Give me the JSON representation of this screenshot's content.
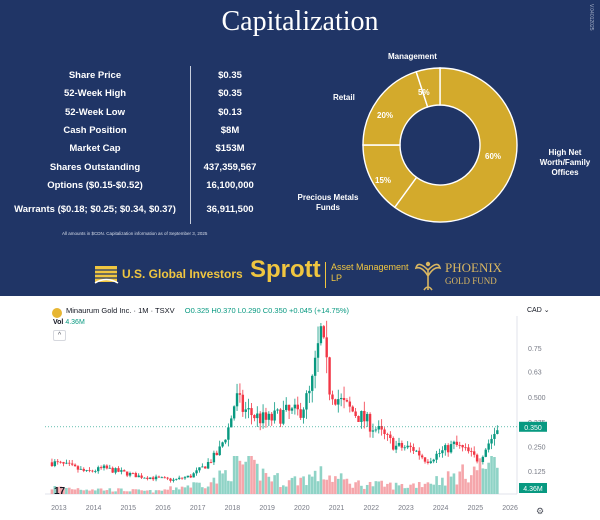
{
  "slide": {
    "title": "Capitalization",
    "side_text": "V.04012025",
    "rows": [
      {
        "label": "Share Price",
        "value": "$0.35"
      },
      {
        "label": "52-Week High",
        "value": "$0.35"
      },
      {
        "label": "52-Week Low",
        "value": "$0.13"
      },
      {
        "label": "Cash Position",
        "value": "$8M"
      },
      {
        "label": "Market Cap",
        "value": "$153M"
      },
      {
        "label": "Shares Outstanding",
        "value": "437,359,567"
      },
      {
        "label": "Options ($0.15-$0.52)",
        "value": "16,100,000"
      },
      {
        "label": "Warrants ($0.18; $0.25; $0.34, $0.37)",
        "value": "36,911,500"
      }
    ],
    "footnote": "All amounts in $CDN.  Capitalization information as of September 3, 2025",
    "logos": {
      "usgi": "U.S. Global Investors",
      "sprott": "Sprott",
      "sprott_sub": "Asset Management LP",
      "phoenix": "PHOENIX",
      "phoenix_sub": "GOLD FUND"
    },
    "colors": {
      "background": "#203566",
      "donut": "#d3aa2c",
      "gold_text": "#f0c640"
    }
  },
  "chart_data": [
    {
      "type": "pie",
      "donut": true,
      "slices": [
        {
          "label": "High Net Worth/Family Offices",
          "value": 60,
          "text": "60%"
        },
        {
          "label": "Precious Metals Funds",
          "value": 15,
          "text": "15%"
        },
        {
          "label": "Retail",
          "value": 20,
          "text": "20%"
        },
        {
          "label": "Management",
          "value": 5,
          "text": "5%"
        }
      ]
    },
    {
      "type": "candlestick",
      "title": "Minaurum Gold Inc. · 1M · TSXV",
      "ohlc_text": "O0.325 H0.370 L0.290 C0.350 +0.045 (+14.75%)",
      "volume_label": "Vol",
      "volume_value": "4.36M",
      "currency": "CAD",
      "last_price": "0.350",
      "x_ticks": [
        "2013",
        "2014",
        "2015",
        "2016",
        "2017",
        "2018",
        "2019",
        "2020",
        "2021",
        "2022",
        "2023",
        "2024",
        "2025",
        "2026"
      ],
      "y_ticks": [
        "0.75",
        "0.63",
        "0.500",
        "0.375",
        "0.250",
        "0.125"
      ],
      "ylim": [
        0.05,
        0.82
      ],
      "anchors": [
        [
          2012.8,
          0.17
        ],
        [
          2013.3,
          0.15
        ],
        [
          2013.8,
          0.12
        ],
        [
          2014.3,
          0.14
        ],
        [
          2014.8,
          0.12
        ],
        [
          2015.3,
          0.1
        ],
        [
          2015.8,
          0.09
        ],
        [
          2016.3,
          0.08
        ],
        [
          2016.8,
          0.1
        ],
        [
          2017.2,
          0.15
        ],
        [
          2017.6,
          0.22
        ],
        [
          2017.9,
          0.35
        ],
        [
          2018.1,
          0.5
        ],
        [
          2018.3,
          0.44
        ],
        [
          2018.7,
          0.4
        ],
        [
          2019.0,
          0.38
        ],
        [
          2019.5,
          0.42
        ],
        [
          2019.9,
          0.42
        ],
        [
          2020.25,
          0.52
        ],
        [
          2020.55,
          0.82
        ],
        [
          2020.8,
          0.55
        ],
        [
          2021.2,
          0.46
        ],
        [
          2021.7,
          0.4
        ],
        [
          2022.2,
          0.33
        ],
        [
          2022.7,
          0.25
        ],
        [
          2023.2,
          0.24
        ],
        [
          2023.6,
          0.18
        ],
        [
          2024.0,
          0.22
        ],
        [
          2024.4,
          0.26
        ],
        [
          2024.8,
          0.22
        ],
        [
          2025.1,
          0.18
        ],
        [
          2025.35,
          0.26
        ],
        [
          2025.67,
          0.35
        ]
      ],
      "volume_anchors": [
        [
          2012.8,
          0.25
        ],
        [
          2015.8,
          0.1
        ],
        [
          2017.5,
          0.5
        ],
        [
          2018.2,
          1.2
        ],
        [
          2019.5,
          0.45
        ],
        [
          2020.6,
          0.75
        ],
        [
          2021.5,
          0.4
        ],
        [
          2023.0,
          0.3
        ],
        [
          2024.5,
          0.7
        ],
        [
          2025.67,
          1.3
        ]
      ]
    }
  ]
}
